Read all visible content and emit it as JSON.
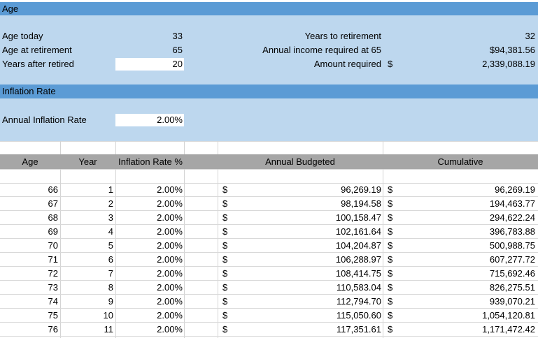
{
  "age_section": {
    "header": "Age",
    "age_today_label": "Age today",
    "age_today_value": "33",
    "age_retirement_label": "Age at retirement",
    "age_retirement_value": "65",
    "years_after_label": "Years after retired",
    "years_after_value": "20",
    "years_to_retirement_label": "Years to retirement",
    "years_to_retirement_value": "32",
    "annual_income_label": "Annual income required at 65",
    "annual_income_value": "$94,381.56",
    "amount_required_label": "Amount required",
    "amount_required_currency": "$",
    "amount_required_value": "2,339,088.19"
  },
  "inflation_section": {
    "header": "Inflation Rate",
    "annual_rate_label": "Annual Inflation Rate",
    "annual_rate_value": "2.00%"
  },
  "table": {
    "columns": [
      "Age",
      "Year",
      "Inflation Rate %",
      "Annual Budgeted",
      "Cumulative"
    ],
    "rows": [
      {
        "age": "66",
        "year": "1",
        "rate": "2.00%",
        "cur1": "$",
        "budget": "96,269.19",
        "cur2": "$",
        "cumulative": "96,269.19"
      },
      {
        "age": "67",
        "year": "2",
        "rate": "2.00%",
        "cur1": "$",
        "budget": "98,194.58",
        "cur2": "$",
        "cumulative": "194,463.77"
      },
      {
        "age": "68",
        "year": "3",
        "rate": "2.00%",
        "cur1": "$",
        "budget": "100,158.47",
        "cur2": "$",
        "cumulative": "294,622.24"
      },
      {
        "age": "69",
        "year": "4",
        "rate": "2.00%",
        "cur1": "$",
        "budget": "102,161.64",
        "cur2": "$",
        "cumulative": "396,783.88"
      },
      {
        "age": "70",
        "year": "5",
        "rate": "2.00%",
        "cur1": "$",
        "budget": "104,204.87",
        "cur2": "$",
        "cumulative": "500,988.75"
      },
      {
        "age": "71",
        "year": "6",
        "rate": "2.00%",
        "cur1": "$",
        "budget": "106,288.97",
        "cur2": "$",
        "cumulative": "607,277.72"
      },
      {
        "age": "72",
        "year": "7",
        "rate": "2.00%",
        "cur1": "$",
        "budget": "108,414.75",
        "cur2": "$",
        "cumulative": "715,692.46"
      },
      {
        "age": "73",
        "year": "8",
        "rate": "2.00%",
        "cur1": "$",
        "budget": "110,583.04",
        "cur2": "$",
        "cumulative": "826,275.51"
      },
      {
        "age": "74",
        "year": "9",
        "rate": "2.00%",
        "cur1": "$",
        "budget": "112,794.70",
        "cur2": "$",
        "cumulative": "939,070.21"
      },
      {
        "age": "75",
        "year": "10",
        "rate": "2.00%",
        "cur1": "$",
        "budget": "115,050.60",
        "cur2": "$",
        "cumulative": "1,054,120.81"
      },
      {
        "age": "76",
        "year": "11",
        "rate": "2.00%",
        "cur1": "$",
        "budget": "117,351.61",
        "cur2": "$",
        "cumulative": "1,171,472.42"
      }
    ]
  }
}
